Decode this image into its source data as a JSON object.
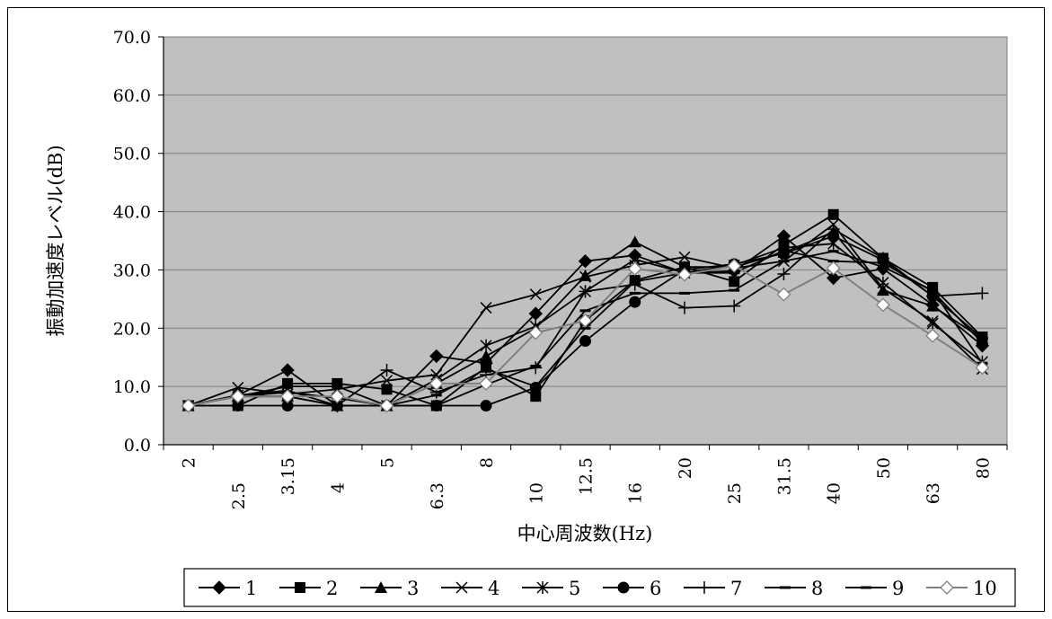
{
  "chart_data": {
    "type": "line",
    "title": "",
    "xlabel": "中心周波数(Hz)",
    "ylabel": "振動加速度レベル(dB)",
    "ylim": [
      0,
      70
    ],
    "yticks": [
      "0.0",
      "10.0",
      "20.0",
      "30.0",
      "40.0",
      "50.0",
      "60.0",
      "70.0"
    ],
    "grid": true,
    "plot_background": "#c0c0c0",
    "legend_position": "bottom",
    "categories": [
      "2",
      "2.5",
      "3.15",
      "4",
      "5",
      "6.3",
      "8",
      "10",
      "12.5",
      "16",
      "20",
      "25",
      "31.5",
      "40",
      "50",
      "63",
      "80"
    ],
    "series": [
      {
        "name": "1",
        "marker": "diamond",
        "color": "#000000",
        "values": [
          6.7,
          8.5,
          12.8,
          6.7,
          6.7,
          15.2,
          14.0,
          22.5,
          31.5,
          32.5,
          29.5,
          29.8,
          35.8,
          28.6,
          30.2,
          24.0,
          17.0
        ]
      },
      {
        "name": "2",
        "marker": "square",
        "color": "#000000",
        "values": [
          6.7,
          6.7,
          10.5,
          10.5,
          9.5,
          6.7,
          13.3,
          8.3,
          21.3,
          28.2,
          30.5,
          28.0,
          34.3,
          39.5,
          32.0,
          27.0,
          18.5
        ]
      },
      {
        "name": "3",
        "marker": "triangle",
        "color": "#000000",
        "values": [
          6.7,
          8.3,
          8.3,
          6.7,
          6.7,
          10.5,
          15.2,
          20.0,
          29.0,
          34.8,
          30.5,
          30.5,
          33.0,
          36.5,
          26.5,
          23.8,
          18.2
        ]
      },
      {
        "name": "4",
        "marker": "x",
        "color": "#000000",
        "values": [
          6.7,
          9.8,
          8.7,
          9.5,
          11.0,
          12.0,
          23.5,
          25.8,
          28.8,
          30.8,
          32.2,
          30.3,
          31.5,
          37.8,
          26.8,
          21.2,
          13.0
        ]
      },
      {
        "name": "5",
        "marker": "asterisk",
        "color": "#000000",
        "values": [
          6.7,
          8.5,
          9.3,
          6.7,
          6.7,
          11.2,
          17.0,
          20.3,
          26.3,
          31.8,
          29.5,
          30.8,
          33.8,
          34.5,
          27.8,
          20.8,
          14.2
        ]
      },
      {
        "name": "6",
        "marker": "circle",
        "color": "#000000",
        "values": [
          6.7,
          6.7,
          6.7,
          6.7,
          6.7,
          6.7,
          6.7,
          9.8,
          17.8,
          24.5,
          30.0,
          31.0,
          32.8,
          35.8,
          31.7,
          25.5,
          18.3
        ]
      },
      {
        "name": "7",
        "marker": "plus",
        "color": "#000000",
        "values": [
          6.7,
          8.3,
          8.3,
          6.7,
          12.8,
          9.0,
          12.0,
          13.2,
          26.3,
          27.5,
          23.5,
          23.8,
          29.3,
          37.0,
          32.0,
          25.5,
          26.0
        ]
      },
      {
        "name": "8",
        "marker": "dash",
        "color": "#000000",
        "values": [
          6.7,
          8.3,
          10.0,
          10.0,
          6.7,
          6.7,
          10.3,
          13.5,
          23.0,
          26.0,
          26.0,
          26.5,
          31.5,
          33.2,
          30.5,
          26.5,
          14.0
        ]
      },
      {
        "name": "9",
        "marker": "dash",
        "color": "#000000",
        "values": [
          6.7,
          8.3,
          9.0,
          8.0,
          6.7,
          8.5,
          13.0,
          10.0,
          20.0,
          28.0,
          29.5,
          29.5,
          33.3,
          31.5,
          31.2,
          26.3,
          17.5
        ]
      },
      {
        "name": "10",
        "marker": "diamond-open",
        "color": "#808080",
        "values": [
          6.7,
          8.3,
          8.3,
          8.3,
          6.7,
          10.5,
          10.5,
          19.2,
          21.3,
          30.2,
          29.2,
          30.7,
          25.8,
          30.3,
          24.0,
          18.7,
          13.2
        ]
      }
    ]
  }
}
